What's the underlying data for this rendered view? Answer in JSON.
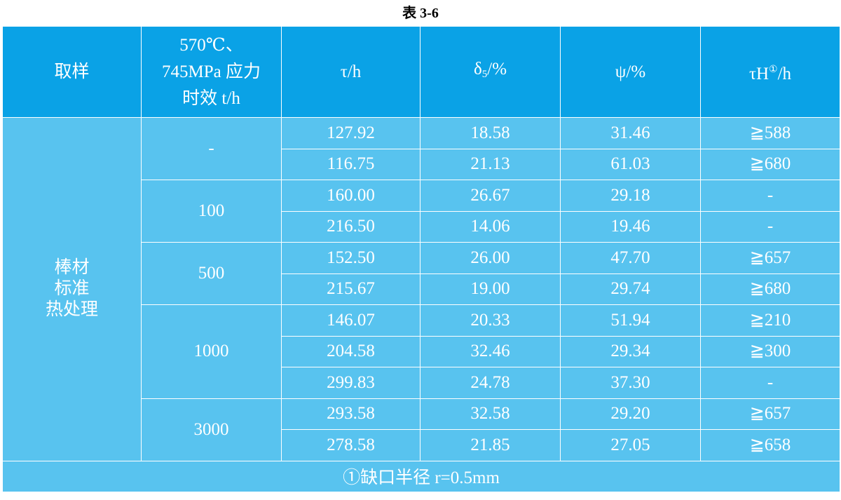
{
  "title": "表 3-6",
  "header": {
    "sample": "取样",
    "aging": [
      "570℃、",
      "745MPa 应力",
      "时效 t/h"
    ],
    "tau": "τ/h",
    "delta": [
      "δ",
      "5",
      "/%"
    ],
    "psi": "ψ/%",
    "tauH": [
      "τH",
      "①",
      "/h"
    ]
  },
  "sample": [
    "棒材",
    "标准",
    "热处理"
  ],
  "groups": [
    {
      "aging": "-",
      "rows": [
        [
          "127.92",
          "18.58",
          "31.46",
          "≧588"
        ],
        [
          "116.75",
          "21.13",
          "61.03",
          "≧680"
        ]
      ]
    },
    {
      "aging": "100",
      "rows": [
        [
          "160.00",
          "26.67",
          "29.18",
          "-"
        ],
        [
          "216.50",
          "14.06",
          "19.46",
          "-"
        ]
      ]
    },
    {
      "aging": "500",
      "rows": [
        [
          "152.50",
          "26.00",
          "47.70",
          "≧657"
        ],
        [
          "215.67",
          "19.00",
          "29.74",
          "≧680"
        ]
      ]
    },
    {
      "aging": "1000",
      "rows": [
        [
          "146.07",
          "20.33",
          "51.94",
          "≧210"
        ],
        [
          "204.58",
          "32.46",
          "29.34",
          "≧300"
        ],
        [
          "299.83",
          "24.78",
          "37.30",
          "-"
        ]
      ]
    },
    {
      "aging": "3000",
      "rows": [
        [
          "293.58",
          "32.58",
          "29.20",
          "≧657"
        ],
        [
          "278.58",
          "21.85",
          "27.05",
          "≧658"
        ]
      ]
    }
  ],
  "footnote": "①缺口半径 r=0.5mm"
}
